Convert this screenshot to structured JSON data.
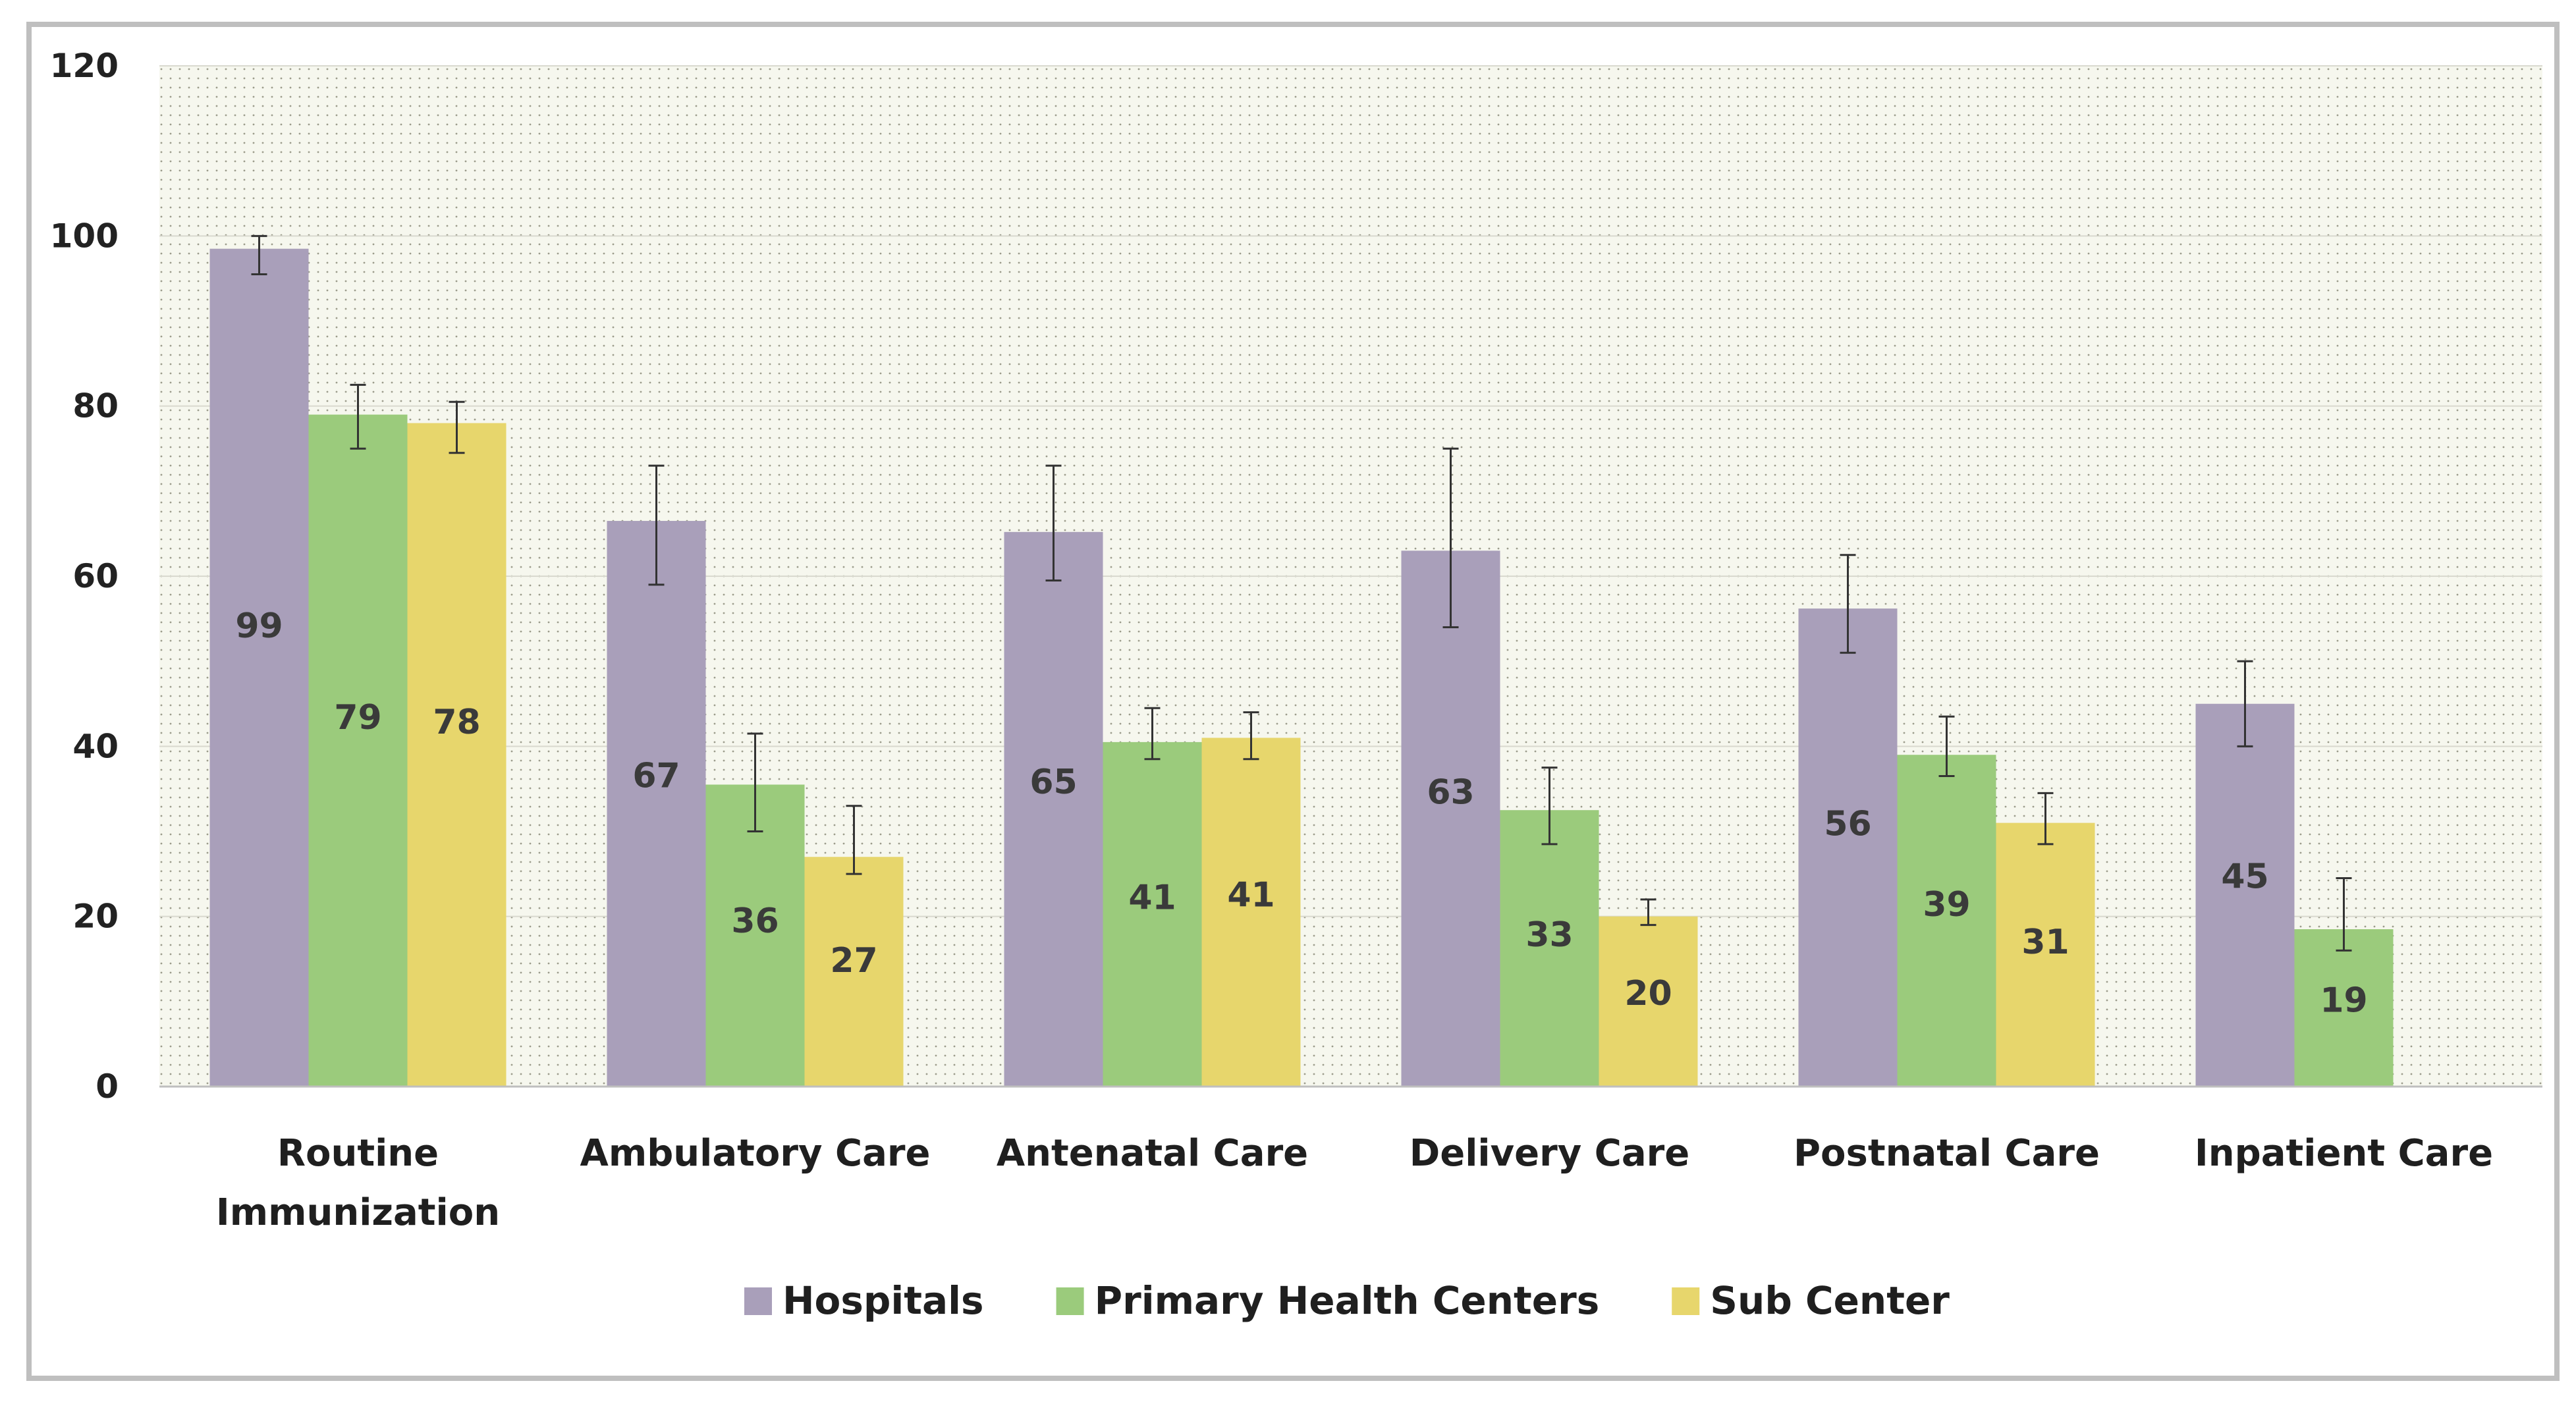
{
  "chart_data": {
    "type": "bar",
    "title": "",
    "xlabel": "",
    "ylabel": "",
    "ylim": [
      0,
      120
    ],
    "yticks": [
      0,
      20,
      40,
      60,
      80,
      100,
      120
    ],
    "grid": true,
    "legend_position": "bottom",
    "categories": [
      [
        "Routine",
        "Immunization"
      ],
      [
        "Ambulatory Care"
      ],
      [
        "Antenatal Care"
      ],
      [
        "Delivery Care"
      ],
      [
        "Postnatal Care"
      ],
      [
        "Inpatient Care"
      ]
    ],
    "series": [
      {
        "name": "Hospitals",
        "color": "#A99FBA",
        "values": [
          98.5,
          66.5,
          65.2,
          63,
          56.2,
          45
        ],
        "labels": [
          "99",
          "67",
          "65",
          "63",
          "56",
          "45"
        ],
        "error_low": [
          95.5,
          59,
          59.5,
          54,
          51,
          40
        ],
        "error_high": [
          100,
          73,
          73,
          75,
          62.5,
          50
        ]
      },
      {
        "name": "Primary Health Centers",
        "color": "#9BCB7C",
        "values": [
          79,
          35.5,
          40.5,
          32.5,
          39,
          18.5
        ],
        "labels": [
          "79",
          "36",
          "41",
          "33",
          "39",
          "19"
        ],
        "error_low": [
          75,
          30,
          38.5,
          28.5,
          36.5,
          16
        ],
        "error_high": [
          82.5,
          41.5,
          44.5,
          37.5,
          43.5,
          24.5
        ]
      },
      {
        "name": "Sub Center",
        "color": "#E7D66C",
        "values": [
          78,
          27,
          41,
          20,
          31,
          null
        ],
        "labels": [
          "78",
          "27",
          "41",
          "20",
          "31",
          ""
        ],
        "error_low": [
          74.5,
          25,
          38.5,
          19,
          28.5,
          null
        ],
        "error_high": [
          80.5,
          33,
          44,
          22,
          34.5,
          null
        ]
      }
    ]
  }
}
